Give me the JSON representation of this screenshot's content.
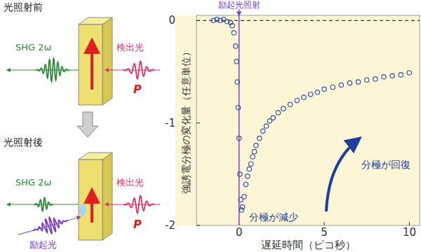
{
  "chart_data": {
    "type": "scatter",
    "x_label": "遅延時間（ピコ秒）",
    "y_label": "強誘電分極の変化量（任意単位）",
    "annotations": [
      "励起光照射",
      "分極が減少",
      "分極が回復"
    ],
    "x": [
      -1.5,
      -1.3,
      -1.1,
      -0.9,
      -0.7,
      -0.5,
      -0.4,
      -0.3,
      -0.2,
      -0.15,
      -0.1,
      -0.05,
      0,
      0.05,
      0.1,
      0.15,
      0.2,
      0.3,
      0.4,
      0.5,
      0.6,
      0.7,
      0.8,
      0.9,
      1.0,
      1.2,
      1.4,
      1.6,
      1.8,
      2.0,
      2.3,
      2.6,
      3.0,
      3.4,
      3.8,
      4.2,
      4.6,
      5.0,
      5.5,
      6.0,
      6.5,
      7.0,
      7.5,
      8.0,
      8.5,
      9.0,
      9.5,
      10.0
    ],
    "values": [
      0,
      0.01,
      0,
      0.01,
      -0.01,
      -0.02,
      -0.05,
      -0.12,
      -0.25,
      -0.4,
      -0.6,
      -0.85,
      -1.15,
      -1.5,
      -1.75,
      -1.85,
      -1.82,
      -1.72,
      -1.6,
      -1.52,
      -1.45,
      -1.4,
      -1.33,
      -1.28,
      -1.22,
      -1.15,
      -1.08,
      -1.03,
      -0.98,
      -0.95,
      -0.9,
      -0.86,
      -0.82,
      -0.78,
      -0.75,
      -0.72,
      -0.7,
      -0.67,
      -0.65,
      -0.63,
      -0.61,
      -0.6,
      -0.58,
      -0.57,
      -0.55,
      -0.54,
      -0.53,
      -0.51
    ],
    "color": "#3553a8",
    "marker": "circle",
    "xlim": [
      -2.5,
      10.6
    ],
    "ylim": [
      -2,
      0.05
    ],
    "xticks": [
      0,
      5,
      10
    ],
    "yticks": [
      0,
      -1,
      -2
    ],
    "zero_line": 0,
    "excitation_time": 0,
    "grid": false
  },
  "diagram": {
    "before": {
      "label": "光照射前",
      "shg": "SHG 2ω",
      "probe": "検出光",
      "polarization": "P"
    },
    "after": {
      "label": "光照射後",
      "shg": "SHG 2ω",
      "probe": "検出光",
      "polarization": "P",
      "pump": "励起光"
    }
  }
}
